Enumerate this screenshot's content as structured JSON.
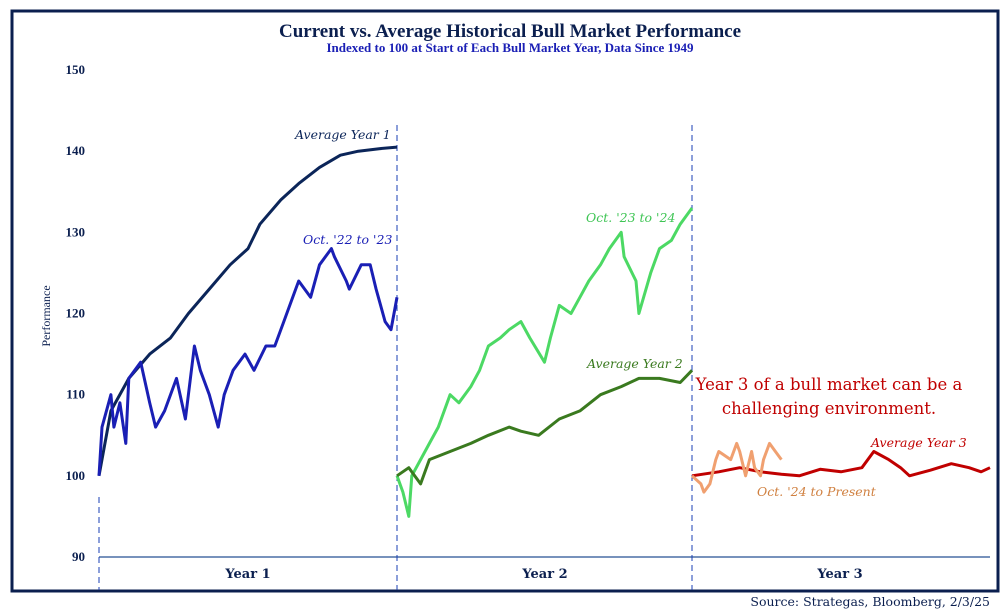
{
  "chart_data": {
    "type": "line",
    "title": "Current vs. Average Historical Bull Market Performance",
    "subtitle": "Indexed to 100 at Start of Each Bull Market Year, Data Since 1949",
    "ylabel": "Performance",
    "xlabel": "",
    "ylim": [
      90,
      150
    ],
    "yticks": [
      90,
      100,
      110,
      120,
      130,
      140,
      150
    ],
    "x_categories": [
      "Year 1",
      "Year 2",
      "Year 3"
    ],
    "grid": false,
    "annotation": [
      "Year 3 of a bull market can be a",
      "challenging environment."
    ],
    "source": "Source: Strategas, Bloomberg, 2/3/25",
    "series": [
      {
        "name": "Average Year 1",
        "year": 1,
        "color": "#0b2559",
        "x": [
          0,
          0.04,
          0.1,
          0.17,
          0.24,
          0.3,
          0.37,
          0.44,
          0.5,
          0.54,
          0.61,
          0.67,
          0.74,
          0.81,
          0.87,
          0.94,
          1.0
        ],
        "y": [
          100,
          108,
          112,
          115,
          117,
          120,
          123,
          126,
          128,
          131,
          134,
          136,
          138,
          139.5,
          140,
          140.3,
          140.5
        ]
      },
      {
        "name": "Oct. '22 to '23",
        "year": 1,
        "color": "#1a1fb5",
        "x": [
          0,
          0.01,
          0.04,
          0.05,
          0.07,
          0.09,
          0.1,
          0.14,
          0.17,
          0.19,
          0.22,
          0.26,
          0.29,
          0.32,
          0.34,
          0.37,
          0.4,
          0.42,
          0.45,
          0.49,
          0.52,
          0.56,
          0.59,
          0.62,
          0.66,
          0.67,
          0.71,
          0.74,
          0.78,
          0.79,
          0.83,
          0.84,
          0.88,
          0.91,
          0.93,
          0.96,
          0.98,
          1.0
        ],
        "y": [
          100,
          106,
          110,
          106,
          109,
          104,
          112,
          114,
          109,
          106,
          108,
          112,
          107,
          116,
          113,
          110,
          106,
          110,
          113,
          115,
          113,
          116,
          116,
          119,
          123,
          124,
          122,
          126,
          128,
          127,
          124,
          123,
          126,
          126,
          123,
          119,
          118,
          122
        ]
      },
      {
        "name": "Oct. '23 to '24",
        "year": 2,
        "color": "#4cd964",
        "x": [
          0,
          0.02,
          0.04,
          0.05,
          0.08,
          0.11,
          0.14,
          0.18,
          0.21,
          0.25,
          0.28,
          0.31,
          0.35,
          0.38,
          0.42,
          0.45,
          0.5,
          0.52,
          0.55,
          0.59,
          0.62,
          0.65,
          0.69,
          0.72,
          0.76,
          0.77,
          0.81,
          0.82,
          0.86,
          0.89,
          0.93,
          0.96,
          1.0
        ],
        "y": [
          100,
          98,
          95,
          100,
          102,
          104,
          106,
          110,
          109,
          111,
          113,
          116,
          117,
          118,
          119,
          117,
          114,
          117,
          121,
          120,
          122,
          124,
          126,
          128,
          130,
          127,
          124,
          120,
          125,
          128,
          129,
          131,
          133
        ]
      },
      {
        "name": "Average Year 2",
        "year": 2,
        "color": "#3a7a1f",
        "x": [
          0,
          0.04,
          0.08,
          0.11,
          0.18,
          0.25,
          0.31,
          0.38,
          0.42,
          0.48,
          0.55,
          0.62,
          0.69,
          0.76,
          0.82,
          0.89,
          0.96,
          1.0
        ],
        "y": [
          100,
          101,
          99,
          102,
          103,
          104,
          105,
          106,
          105.5,
          105,
          107,
          108,
          110,
          111,
          112,
          112,
          111.5,
          113
        ]
      },
      {
        "name": "Average Year 3",
        "year": 3,
        "color": "#c00000",
        "x": [
          0,
          0.09,
          0.16,
          0.23,
          0.3,
          0.36,
          0.43,
          0.5,
          0.57,
          0.61,
          0.66,
          0.7,
          0.73,
          0.8,
          0.87,
          0.93,
          0.97,
          1.0
        ],
        "y": [
          100,
          100.5,
          101,
          100.5,
          100.2,
          100,
          100.8,
          100.5,
          101,
          103,
          102,
          101,
          100,
          100.7,
          101.5,
          101,
          100.5,
          101
        ]
      },
      {
        "name": "Oct. '24 to Present",
        "year": 3,
        "color": "#f0a070",
        "x": [
          0,
          0.03,
          0.04,
          0.06,
          0.08,
          0.09,
          0.13,
          0.15,
          0.16,
          0.18,
          0.2,
          0.21,
          0.23,
          0.24,
          0.26,
          0.28,
          0.3
        ],
        "y": [
          100,
          99,
          98,
          99,
          102,
          103,
          102,
          104,
          103,
          100,
          103,
          101,
          100,
          102,
          104,
          103,
          102
        ]
      }
    ],
    "colors": {
      "frame": "#0b1f4f",
      "axis": "#4a6fa5",
      "divider": "#1a3fb5",
      "label_avg3": "#c00000",
      "label_oct24": "#d08040"
    }
  }
}
